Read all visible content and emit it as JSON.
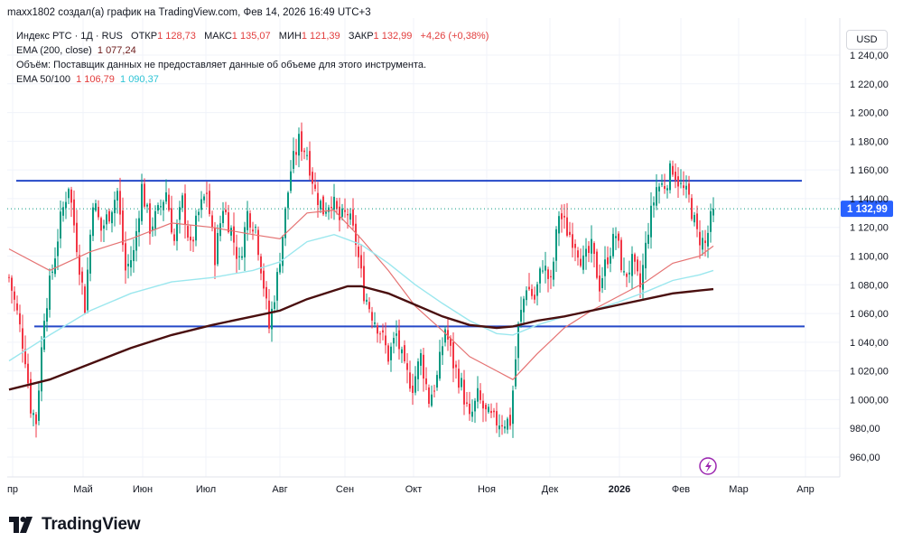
{
  "header": {
    "attribution": "maxx1802 создал(а) график на TradingView.com, Фев 14, 2026 16:49 UTC+3"
  },
  "legend": {
    "symbol": "Индекс РТС · 1Д · RUS",
    "open_label": "ОТКР",
    "open_value": "1 128,73",
    "high_label": "МАКС",
    "high_value": "1 135,07",
    "low_label": "МИН",
    "low_value": "1 121,39",
    "close_label": "ЗАКР",
    "close_value": "1 132,99",
    "change": "+4,26 (+0,38%)",
    "ema200_label": "EMA (200, close)",
    "ema200_value": "1 077,24",
    "volume_note": "Объём: Поставщик данных не предоставляет данные об объеме для этого инструмента.",
    "ema_pair_label": "EMA 50/100",
    "ema50_value": "1 106,79",
    "ema100_value": "1 090,37"
  },
  "currency": "USD",
  "brand": "TradingView",
  "colors": {
    "up": "#089981",
    "down": "#f23645",
    "ema50": "#e57373",
    "ema100": "#9be7ee",
    "ema200": "#4a0f0f",
    "hline": "#2448c8",
    "label_bg": "#2962ff"
  },
  "chart_data": {
    "type": "candlestick",
    "title": "Индекс РТС · 1Д · RUS",
    "ylabel": "USD",
    "ylim": [
      950,
      1255
    ],
    "y_ticks": [
      960,
      980,
      1000,
      1020,
      1040,
      1060,
      1080,
      1100,
      1120,
      1140,
      1160,
      1180,
      1200,
      1220,
      1240
    ],
    "y_tick_labels": [
      "960,00",
      "980,00",
      "1 000,00",
      "1 020,00",
      "1 040,00",
      "1 060,00",
      "1 080,00",
      "1 100,00",
      "1 120,00",
      "1 140,00",
      "1 160,00",
      "1 180,00",
      "1 200,00",
      "1 220,00",
      "1 240,00"
    ],
    "x_labels": [
      "пр",
      "Май",
      "Июн",
      "Июл",
      "Авг",
      "Сен",
      "Окт",
      "Ноя",
      "Дек",
      "2026",
      "Фев",
      "Мар",
      "Апр"
    ],
    "last_price": 1132.99,
    "last_price_label": "1 132,99",
    "horizontal_lines": [
      1152.5,
      1051.0
    ],
    "price_path": [
      [
        0,
        1085
      ],
      [
        3,
        1060
      ],
      [
        6,
        1030
      ],
      [
        8,
        995
      ],
      [
        10,
        985
      ],
      [
        13,
        1060
      ],
      [
        16,
        1090
      ],
      [
        19,
        1125
      ],
      [
        22,
        1150
      ],
      [
        25,
        1108
      ],
      [
        28,
        1065
      ],
      [
        31,
        1140
      ],
      [
        34,
        1118
      ],
      [
        37,
        1130
      ],
      [
        40,
        1145
      ],
      [
        43,
        1090
      ],
      [
        46,
        1102
      ],
      [
        49,
        1148
      ],
      [
        52,
        1120
      ],
      [
        55,
        1130
      ],
      [
        58,
        1145
      ],
      [
        61,
        1110
      ],
      [
        64,
        1138
      ],
      [
        67,
        1105
      ],
      [
        70,
        1130
      ],
      [
        73,
        1145
      ],
      [
        76,
        1100
      ],
      [
        79,
        1135
      ],
      [
        82,
        1118
      ],
      [
        85,
        1095
      ],
      [
        88,
        1130
      ],
      [
        91,
        1120
      ],
      [
        94,
        1080
      ],
      [
        96,
        1050
      ],
      [
        99,
        1085
      ],
      [
        102,
        1130
      ],
      [
        104,
        1160
      ],
      [
        107,
        1180
      ],
      [
        110,
        1172
      ],
      [
        113,
        1145
      ],
      [
        116,
        1132
      ],
      [
        119,
        1140
      ],
      [
        122,
        1125
      ],
      [
        125,
        1130
      ],
      [
        128,
        1110
      ],
      [
        131,
        1075
      ],
      [
        134,
        1060
      ],
      [
        137,
        1048
      ],
      [
        140,
        1030
      ],
      [
        143,
        1045
      ],
      [
        146,
        1020
      ],
      [
        149,
        1010
      ],
      [
        152,
        1030
      ],
      [
        155,
        1000
      ],
      [
        158,
        1015
      ],
      [
        161,
        1050
      ],
      [
        164,
        1025
      ],
      [
        167,
        1010
      ],
      [
        170,
        985
      ],
      [
        173,
        1002
      ],
      [
        176,
        990
      ],
      [
        179,
        985
      ],
      [
        182,
        985
      ],
      [
        185,
        985
      ],
      [
        188,
        1050
      ],
      [
        191,
        1080
      ],
      [
        194,
        1070
      ],
      [
        197,
        1095
      ],
      [
        200,
        1080
      ],
      [
        203,
        1130
      ],
      [
        206,
        1118
      ],
      [
        209,
        1110
      ],
      [
        212,
        1095
      ],
      [
        215,
        1105
      ],
      [
        218,
        1080
      ],
      [
        221,
        1100
      ],
      [
        224,
        1115
      ],
      [
        227,
        1085
      ],
      [
        230,
        1095
      ],
      [
        233,
        1078
      ],
      [
        236,
        1120
      ],
      [
        239,
        1148
      ],
      [
        242,
        1150
      ],
      [
        245,
        1162
      ],
      [
        248,
        1148
      ],
      [
        251,
        1140
      ],
      [
        254,
        1115
      ],
      [
        257,
        1108
      ],
      [
        260,
        1133
      ]
    ],
    "series": [
      {
        "name": "EMA 50",
        "value": 1106.79,
        "path": [
          [
            0,
            1105
          ],
          [
            15,
            1090
          ],
          [
            30,
            1103
          ],
          [
            45,
            1112
          ],
          [
            60,
            1123
          ],
          [
            75,
            1120
          ],
          [
            90,
            1115
          ],
          [
            100,
            1112
          ],
          [
            110,
            1130
          ],
          [
            120,
            1132
          ],
          [
            130,
            1112
          ],
          [
            140,
            1090
          ],
          [
            150,
            1065
          ],
          [
            160,
            1048
          ],
          [
            170,
            1030
          ],
          [
            180,
            1020
          ],
          [
            186,
            1014
          ],
          [
            195,
            1032
          ],
          [
            205,
            1050
          ],
          [
            215,
            1062
          ],
          [
            225,
            1072
          ],
          [
            235,
            1082
          ],
          [
            245,
            1095
          ],
          [
            255,
            1100
          ],
          [
            260,
            1107
          ]
        ]
      },
      {
        "name": "EMA 100",
        "value": 1090.37,
        "path": [
          [
            0,
            1027
          ],
          [
            15,
            1045
          ],
          [
            30,
            1062
          ],
          [
            45,
            1074
          ],
          [
            60,
            1082
          ],
          [
            75,
            1085
          ],
          [
            90,
            1090
          ],
          [
            100,
            1096
          ],
          [
            110,
            1110
          ],
          [
            120,
            1115
          ],
          [
            130,
            1108
          ],
          [
            140,
            1095
          ],
          [
            150,
            1080
          ],
          [
            160,
            1067
          ],
          [
            170,
            1055
          ],
          [
            180,
            1046
          ],
          [
            186,
            1045
          ],
          [
            195,
            1052
          ],
          [
            205,
            1058
          ],
          [
            215,
            1062
          ],
          [
            225,
            1068
          ],
          [
            235,
            1075
          ],
          [
            245,
            1083
          ],
          [
            255,
            1087
          ],
          [
            260,
            1090
          ]
        ]
      },
      {
        "name": "EMA 200",
        "value": 1077.24,
        "path": [
          [
            0,
            1007
          ],
          [
            15,
            1014
          ],
          [
            30,
            1025
          ],
          [
            45,
            1036
          ],
          [
            60,
            1045
          ],
          [
            75,
            1052
          ],
          [
            90,
            1058
          ],
          [
            100,
            1062
          ],
          [
            110,
            1070
          ],
          [
            120,
            1076
          ],
          [
            125,
            1079
          ],
          [
            130,
            1079
          ],
          [
            140,
            1074
          ],
          [
            150,
            1066
          ],
          [
            160,
            1058
          ],
          [
            170,
            1052
          ],
          [
            180,
            1050
          ],
          [
            186,
            1051
          ],
          [
            195,
            1055
          ],
          [
            205,
            1058
          ],
          [
            215,
            1062
          ],
          [
            225,
            1066
          ],
          [
            235,
            1070
          ],
          [
            245,
            1074
          ],
          [
            255,
            1076
          ],
          [
            260,
            1077
          ]
        ]
      }
    ]
  }
}
